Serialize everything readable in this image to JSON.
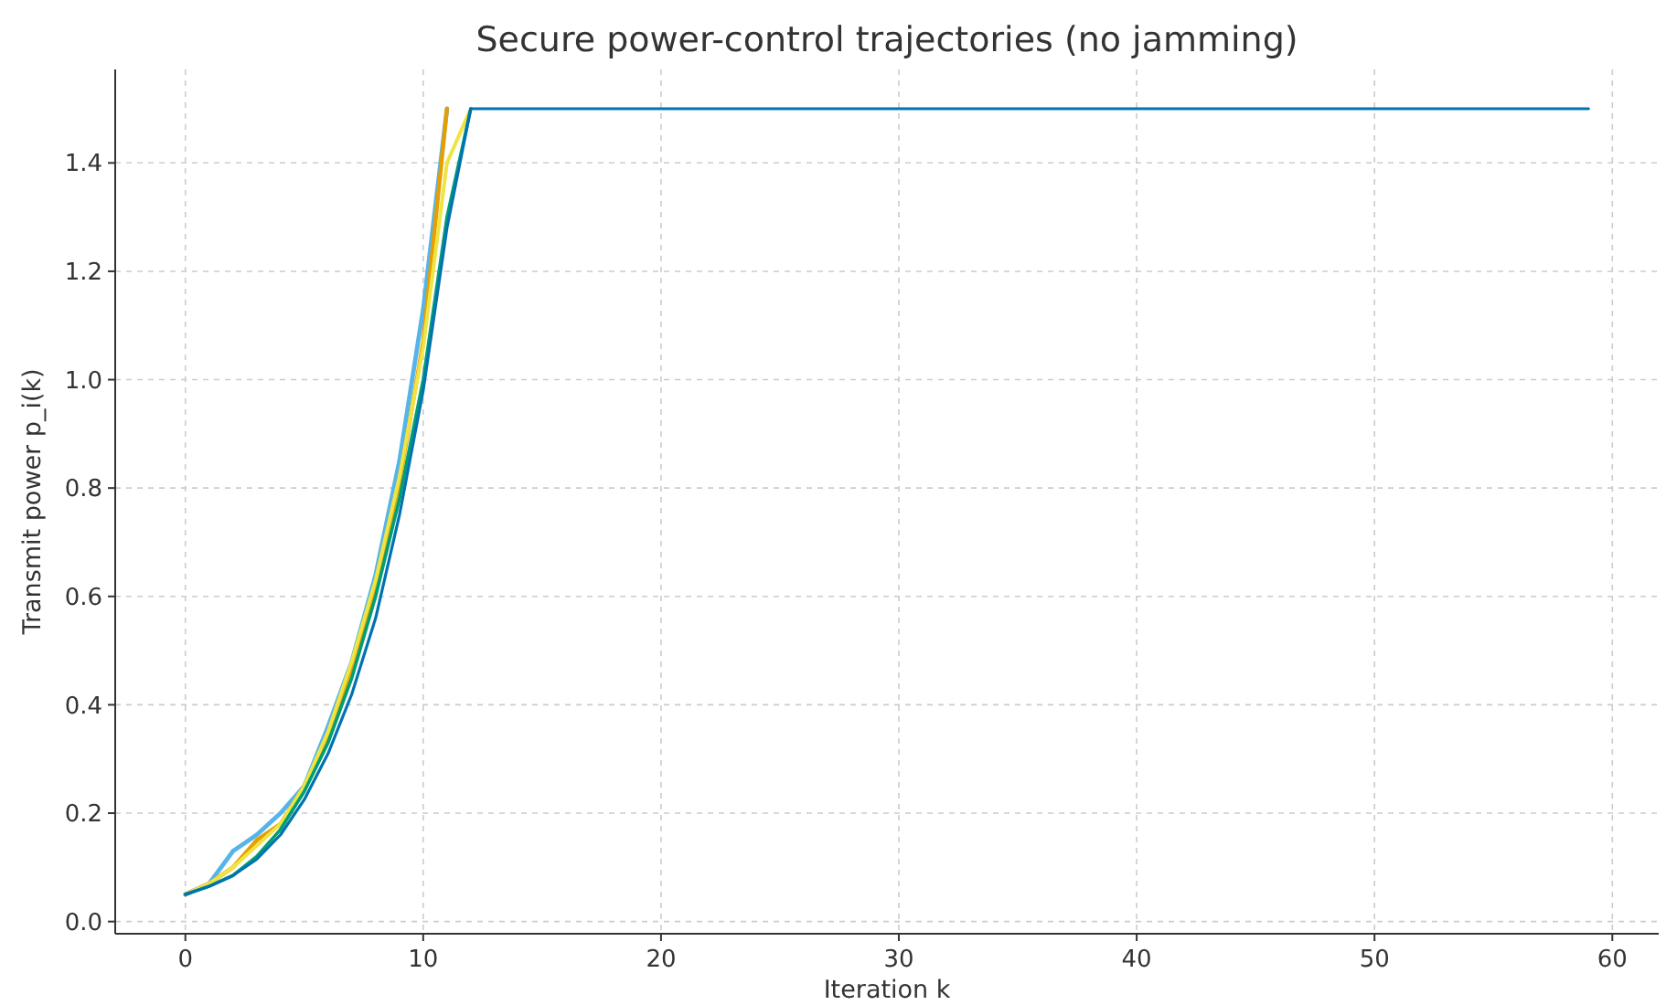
{
  "chart_data": {
    "type": "line",
    "title": "Secure power-control trajectories (no jamming)",
    "xlabel": "Iteration k",
    "ylabel": "Transmit power p_i(k)",
    "x": [
      0,
      1,
      2,
      3,
      4,
      5,
      6,
      7,
      8,
      9,
      10,
      11,
      12,
      13,
      14,
      15,
      16,
      17,
      18,
      19,
      20,
      21,
      22,
      23,
      24,
      25,
      26,
      27,
      28,
      29,
      30,
      31,
      32,
      33,
      34,
      35,
      36,
      37,
      38,
      39,
      40,
      41,
      42,
      43,
      44,
      45,
      46,
      47,
      48,
      49,
      50,
      51,
      52,
      53,
      54,
      55,
      56,
      57,
      58,
      59
    ],
    "series": [
      {
        "color": "#56b4e9",
        "values": [
          0.05,
          0.07,
          0.13,
          0.16,
          0.2,
          0.25,
          0.36,
          0.48,
          0.64,
          0.85,
          1.13,
          1.5,
          null,
          null,
          null,
          null,
          null,
          null,
          null,
          null,
          null,
          null,
          null,
          null,
          null,
          null,
          null,
          null,
          null,
          null,
          null,
          null,
          null,
          null,
          null,
          null,
          null,
          null,
          null,
          null,
          null,
          null,
          null,
          null,
          null,
          null,
          null,
          null,
          null,
          null,
          null,
          null,
          null,
          null,
          null,
          null,
          null,
          null,
          null,
          null
        ]
      },
      {
        "color": "#e69f00",
        "values": [
          0.05,
          0.07,
          0.1,
          0.15,
          0.18,
          0.25,
          0.34,
          0.47,
          0.62,
          0.81,
          1.07,
          1.5,
          null,
          null,
          null,
          null,
          null,
          null,
          null,
          null,
          null,
          null,
          null,
          null,
          null,
          null,
          null,
          null,
          null,
          null,
          null,
          null,
          null,
          null,
          null,
          null,
          null,
          null,
          null,
          null,
          null,
          null,
          null,
          null,
          null,
          null,
          null,
          null,
          null,
          null,
          null,
          null,
          null,
          null,
          null,
          null,
          null,
          null,
          null,
          null
        ]
      },
      {
        "color": "#f0e442",
        "values": [
          0.05,
          0.07,
          0.1,
          0.14,
          0.18,
          0.25,
          0.35,
          0.48,
          0.63,
          0.82,
          1.06,
          1.4,
          1.5,
          null,
          null,
          null,
          null,
          null,
          null,
          null,
          null,
          null,
          null,
          null,
          null,
          null,
          null,
          null,
          null,
          null,
          null,
          null,
          null,
          null,
          null,
          null,
          null,
          null,
          null,
          null,
          null,
          null,
          null,
          null,
          null,
          null,
          null,
          null,
          null,
          null,
          null,
          null,
          null,
          null,
          null,
          null,
          null,
          null,
          null,
          null
        ]
      },
      {
        "color": "#009e73",
        "values": [
          0.05,
          0.065,
          0.085,
          0.12,
          0.17,
          0.24,
          0.33,
          0.45,
          0.6,
          0.78,
          1.0,
          1.3,
          1.5,
          null,
          null,
          null,
          null,
          null,
          null,
          null,
          null,
          null,
          null,
          null,
          null,
          null,
          null,
          null,
          null,
          null,
          null,
          null,
          null,
          null,
          null,
          null,
          null,
          null,
          null,
          null,
          null,
          null,
          null,
          null,
          null,
          null,
          null,
          null,
          null,
          null,
          null,
          null,
          null,
          null,
          null,
          null,
          null,
          null,
          null,
          null
        ]
      },
      {
        "color": "#0072b2",
        "values": [
          0.05,
          0.065,
          0.085,
          0.115,
          0.16,
          0.225,
          0.31,
          0.42,
          0.56,
          0.75,
          0.98,
          1.28,
          1.5,
          1.5,
          1.5,
          1.5,
          1.5,
          1.5,
          1.5,
          1.5,
          1.5,
          1.5,
          1.5,
          1.5,
          1.5,
          1.5,
          1.5,
          1.5,
          1.5,
          1.5,
          1.5,
          1.5,
          1.5,
          1.5,
          1.5,
          1.5,
          1.5,
          1.5,
          1.5,
          1.5,
          1.5,
          1.5,
          1.5,
          1.5,
          1.5,
          1.5,
          1.5,
          1.5,
          1.5,
          1.5,
          1.5,
          1.5,
          1.5,
          1.5,
          1.5,
          1.5,
          1.5,
          1.5,
          1.5,
          1.5
        ]
      }
    ],
    "xlim": [
      -2.95,
      61.95
    ],
    "xticks": [
      0,
      10,
      20,
      30,
      40,
      50,
      60
    ],
    "ylim": [
      -0.0225,
      1.5725
    ],
    "yticks": [
      {
        "value": 0,
        "label": "0.0"
      },
      {
        "value": 0.2,
        "label": "0.2"
      },
      {
        "value": 0.4,
        "label": "0.4"
      },
      {
        "value": 0.6,
        "label": "0.6"
      },
      {
        "value": 0.8,
        "label": "0.8"
      },
      {
        "value": 1.0,
        "label": "1.0"
      },
      {
        "value": 1.2,
        "label": "1.2"
      },
      {
        "value": 1.4,
        "label": "1.4"
      }
    ],
    "grid": true,
    "marker": "none",
    "line_style": "solid"
  }
}
